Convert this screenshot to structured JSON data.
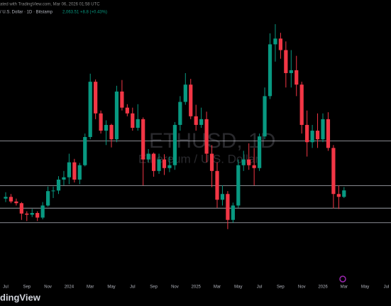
{
  "header": {
    "line1": "ated with TradingView.com, Mar 06, 2026 01:58 UTC",
    "line2": "/ U.S. Dollar · 1D · Bitstamp",
    "quote": "2,063.51 +8.8 (+0.43%)"
  },
  "watermark": {
    "symbol": "ETHUSD, 1D",
    "name": "Ethereum / U.S. Dollar"
  },
  "logo": "dingView",
  "chart_data": {
    "type": "candlestick",
    "x_labels": [
      "Jul",
      "Sep",
      "Nov",
      "2024",
      "Mar",
      "May",
      "Jul",
      "Sep",
      "Nov",
      "2025",
      "Mar",
      "May",
      "Jul",
      "Sep",
      "Nov",
      "2026",
      "Mar",
      "May",
      "Jul"
    ],
    "open": [
      1920,
      1950,
      1870,
      1840,
      1660,
      1640,
      1670,
      1590,
      1800,
      2050,
      2060,
      2250,
      2290,
      2550,
      2250,
      2500,
      2990,
      3950,
      3400,
      3100,
      3200,
      2950,
      3780,
      3500,
      3400,
      3150,
      3300,
      2600,
      2700,
      2400,
      2600,
      2450,
      2500,
      3200,
      3600,
      3900,
      3350,
      3200,
      3300,
      2700,
      2400,
      1900,
      2000,
      1550,
      1800,
      2500,
      2600,
      2500,
      2450,
      3000,
      3700,
      4600,
      4700,
      4500,
      4100,
      4150,
      3900,
      3200,
      2900,
      3100,
      2950,
      3300,
      2800,
      2000,
      1950
    ],
    "high": [
      2030,
      2000,
      1920,
      1860,
      1700,
      1740,
      1700,
      1860,
      2130,
      2130,
      2310,
      2400,
      2700,
      2610,
      2540,
      3050,
      4090,
      3990,
      3450,
      3280,
      3220,
      3880,
      3980,
      3560,
      3500,
      3560,
      3330,
      2780,
      2720,
      2700,
      2690,
      2650,
      3250,
      3700,
      4100,
      4000,
      3550,
      3500,
      3430,
      2850,
      2550,
      2150,
      2050,
      1850,
      2600,
      2750,
      2880,
      2800,
      3050,
      3850,
      4790,
      4950,
      4800,
      4650,
      4500,
      4400,
      3950,
      3450,
      3200,
      3400,
      3400,
      3420,
      2850,
      2150,
      2120
    ],
    "low": [
      1860,
      1840,
      1800,
      1550,
      1530,
      1600,
      1530,
      1560,
      1780,
      1930,
      2000,
      2150,
      2170,
      2200,
      2170,
      2480,
      2950,
      3300,
      3050,
      2850,
      2810,
      2900,
      3450,
      3350,
      3100,
      3100,
      2150,
      2550,
      2300,
      2350,
      2330,
      2380,
      2420,
      3100,
      3550,
      3300,
      3100,
      3150,
      2550,
      2120,
      1760,
      1800,
      1390,
      1500,
      1760,
      2400,
      2420,
      2150,
      2400,
      2950,
      3650,
      4300,
      4350,
      3850,
      3850,
      3700,
      3050,
      2650,
      2800,
      2800,
      2900,
      2750,
      1750,
      1740,
      1930
    ],
    "close": [
      1950,
      1870,
      1840,
      1660,
      1640,
      1670,
      1590,
      1800,
      2050,
      2060,
      2250,
      2290,
      2550,
      2250,
      2500,
      2990,
      3950,
      3400,
      3100,
      3200,
      2950,
      3780,
      3500,
      3400,
      3150,
      3300,
      2600,
      2700,
      2400,
      2600,
      2450,
      2500,
      3200,
      3600,
      3900,
      3350,
      3200,
      3300,
      2700,
      2400,
      1900,
      2000,
      1550,
      1800,
      2500,
      2600,
      2500,
      2450,
      3000,
      3700,
      4600,
      4700,
      4500,
      4100,
      4150,
      3900,
      3200,
      2900,
      3100,
      2950,
      3300,
      2800,
      2000,
      1950,
      2063
    ],
    "ylim": [
      1300,
      5000
    ],
    "levels": [
      2920,
      2143,
      1754,
      1500
    ],
    "up_color": "#089981",
    "down_color": "#f23645",
    "level_color": "#b2b5be"
  }
}
